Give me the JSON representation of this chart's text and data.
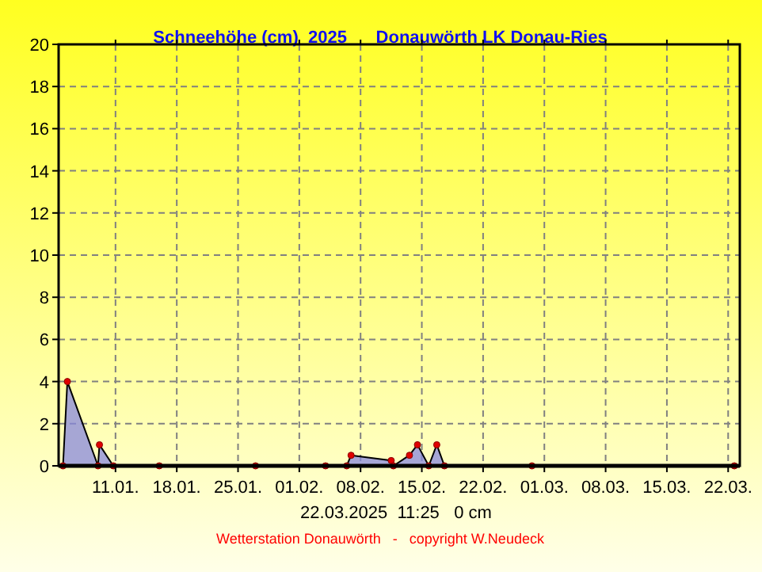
{
  "chart_data": {
    "type": "area",
    "title": "Schneehöhe (cm)  2025      Donauwörth LK Donau-Ries",
    "x": [
      "2025-01-05",
      "2025-01-05T12:00",
      "2025-01-09",
      "2025-01-09T04:00",
      "2025-01-10T18:00",
      "2025-01-16",
      "2025-01-27",
      "2025-02-04",
      "2025-02-06T10:00",
      "2025-02-06T22:00",
      "2025-02-11T12:00",
      "2025-02-11T18:00",
      "2025-02-13T14:00",
      "2025-02-14T12:00",
      "2025-02-15T19:00",
      "2025-02-16T17:00",
      "2025-02-17T14:00",
      "2025-02-27T14:00",
      "2025-03-22T17:00"
    ],
    "series": [
      {
        "color": "#8888dd",
        "values": [
          0,
          4,
          0,
          1,
          0,
          0,
          0,
          0,
          0,
          0.5,
          0.25,
          0,
          0.5,
          1,
          0,
          1,
          0,
          0,
          0
        ]
      }
    ],
    "xlim": [
      "2025-01-04T12:00",
      "2025-03-23T08:00"
    ],
    "xticks": [
      {
        "value": "2025-01-11",
        "label": "11.01."
      },
      {
        "value": "2025-01-18",
        "label": "18.01."
      },
      {
        "value": "2025-01-25",
        "label": "25.01."
      },
      {
        "value": "2025-02-01",
        "label": "01.02."
      },
      {
        "value": "2025-02-08",
        "label": "08.02."
      },
      {
        "value": "2025-02-15",
        "label": "15.02."
      },
      {
        "value": "2025-02-22",
        "label": "22.02."
      },
      {
        "value": "2025-03-01",
        "label": "01.03."
      },
      {
        "value": "2025-03-08",
        "label": "08.03."
      },
      {
        "value": "2025-03-15",
        "label": "15.03."
      },
      {
        "value": "2025-03-22",
        "label": "22.03."
      }
    ],
    "ylim": [
      0,
      20
    ],
    "yticks": [
      0,
      2,
      4,
      6,
      8,
      10,
      12,
      14,
      16,
      18,
      20
    ],
    "grid": true,
    "marker": "circle",
    "annotations": [
      "22.03.2025  11:25   0 cm",
      "Wetterstation Donauwörth   -   copyright W.Neudeck"
    ]
  }
}
